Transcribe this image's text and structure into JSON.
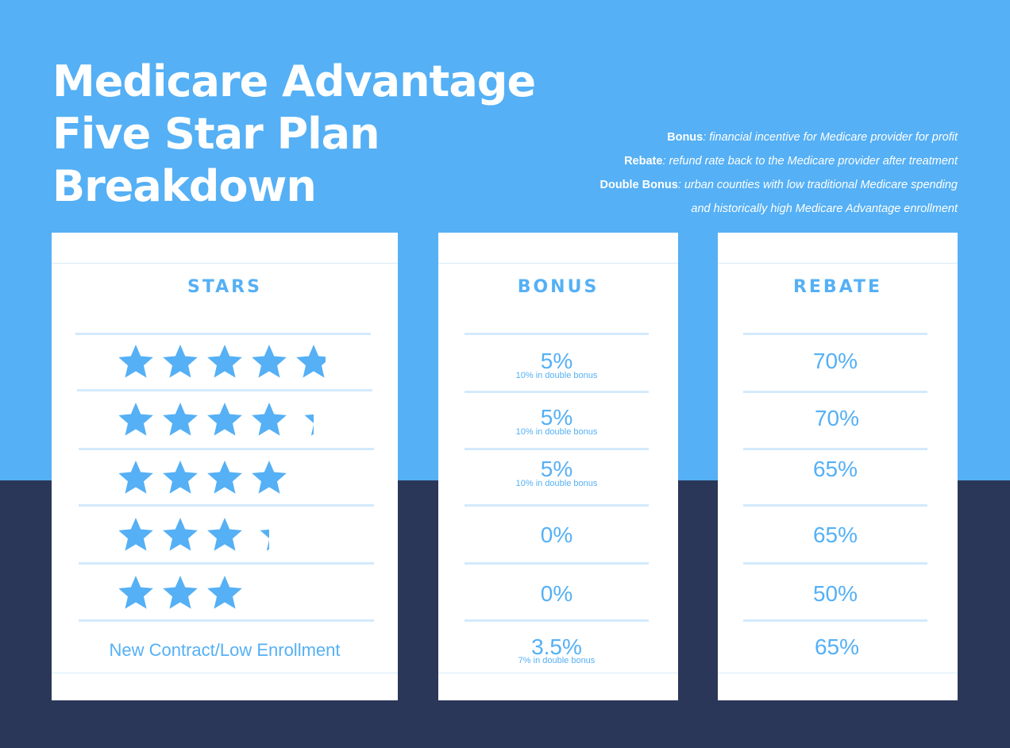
{
  "title": {
    "line1": "Medicare Advantage",
    "line2": "Five Star Plan",
    "line3": "Breakdown"
  },
  "legend": [
    {
      "term": "Bonus",
      "definition": ": financial incentive for Medicare provider for profit"
    },
    {
      "term": "Rebate",
      "definition": ": refund rate back to the Medicare provider after treatment"
    },
    {
      "term": "Double Bonus",
      "definition": ": urban counties with low traditional Medicare spending"
    },
    {
      "term": "",
      "definition": "and historically high Medicare Advantage enrollment"
    }
  ],
  "headers": {
    "stars": "STARS",
    "bonus": "BONUS",
    "rebate": "REBATE"
  },
  "rows": [
    {
      "stars": 5,
      "bonus": "5%",
      "bonus_note": "10% in double bonus",
      "rebate": "70%"
    },
    {
      "stars": 4.5,
      "bonus": "5%",
      "bonus_note": "10% in double bonus",
      "rebate": "70%"
    },
    {
      "stars": 4,
      "bonus": "5%",
      "bonus_note": "10% in double bonus",
      "rebate": "65%"
    },
    {
      "stars": 3.5,
      "bonus": "0%",
      "bonus_note": "",
      "rebate": "65%"
    },
    {
      "stars": 3,
      "bonus": "0%",
      "bonus_note": "",
      "rebate": "50%"
    }
  ],
  "new_contract": {
    "label": "New Contract/Low Enrollment",
    "bonus": "3.5%",
    "bonus_note": "7% in double bonus",
    "rebate": "65%"
  },
  "colors": {
    "accent": "#55b0f5",
    "navy": "#2b3759",
    "divider": "#d3eafc"
  },
  "icons": {
    "star": "star-icon",
    "half_star": "half-star-icon"
  }
}
